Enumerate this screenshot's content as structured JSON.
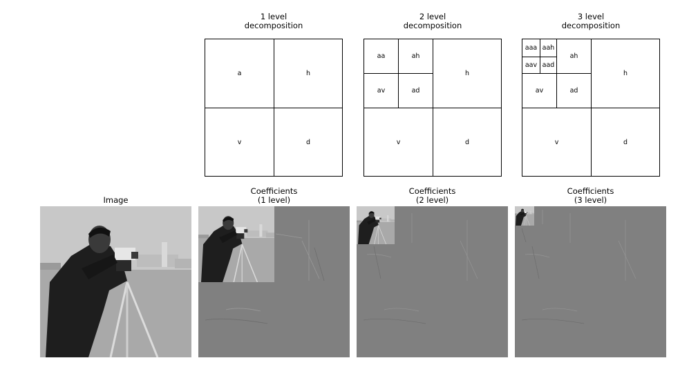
{
  "diagrams": [
    {
      "title": "1 level\ndecomposition",
      "labels": [
        "a",
        "h",
        "v",
        "d"
      ]
    },
    {
      "title": "2 level\ndecomposition",
      "labels": [
        "aa",
        "ah",
        "av",
        "ad",
        "h",
        "v",
        "d"
      ]
    },
    {
      "title": "3 level\ndecomposition",
      "labels": [
        "aaa",
        "aah",
        "aav",
        "aad",
        "ah",
        "av",
        "ad",
        "h",
        "v",
        "d"
      ]
    }
  ],
  "images": [
    {
      "title": "Image"
    },
    {
      "title": "Coefficients\n(1 level)"
    },
    {
      "title": "Coefficients\n(2 level)"
    },
    {
      "title": "Coefficients\n(3 level)"
    }
  ],
  "colors": {
    "border": "#000000",
    "coeff_gray": "#808080",
    "sky": "#c9c9c9",
    "grass": "#a7a7a7"
  }
}
